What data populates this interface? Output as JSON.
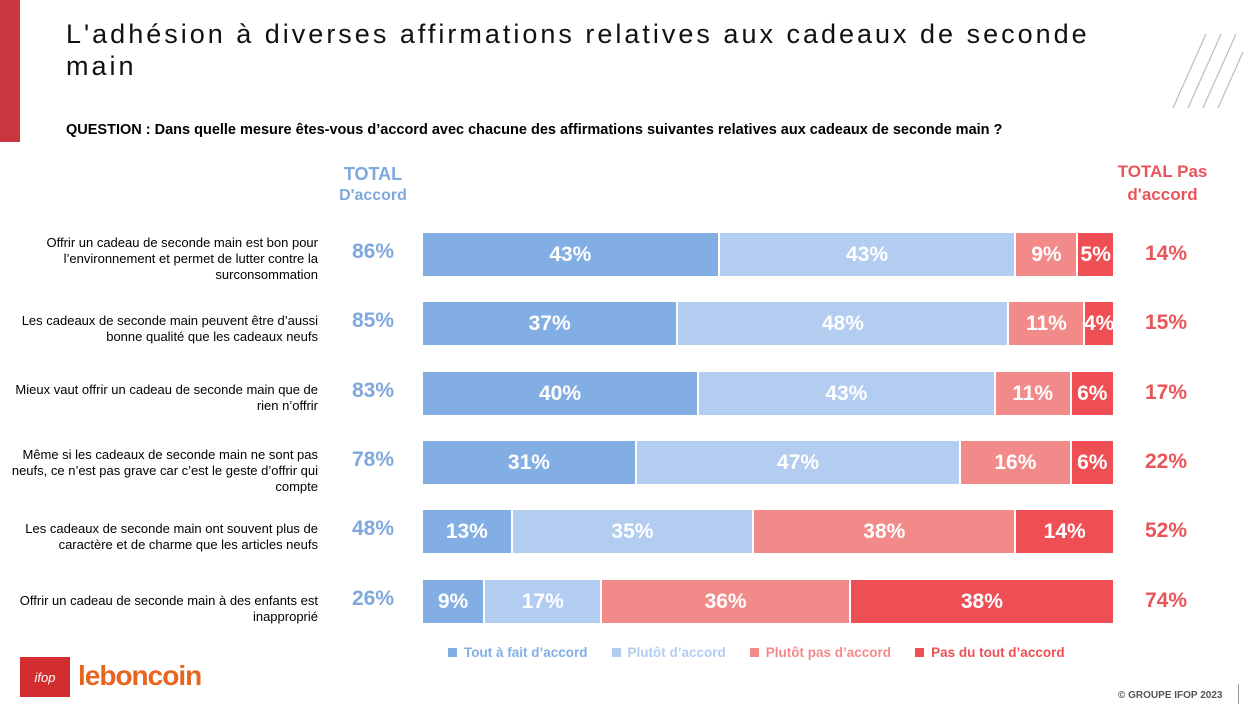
{
  "title": "L'adhésion à diverses affirmations relatives aux cadeaux de seconde main",
  "question": "QUESTION : Dans quelle mesure êtes-vous d’accord avec chacune des affirmations suivantes relatives aux cadeaux de seconde main ?",
  "header_left": {
    "line1": "TOTAL",
    "line2": "D'accord"
  },
  "header_right": {
    "line1": "TOTAL Pas",
    "line2": "d'accord"
  },
  "colors": {
    "tout_a_fait": "#82aee4",
    "plutot": "#b2cdf0",
    "plutot_pas": "#f28a8a",
    "pas_du_tout": "#ee4f54",
    "total_accord": "#7fa8dc",
    "total_pas": "#e8555a",
    "brand_accent": "#c8373d"
  },
  "chart_data": {
    "type": "bar",
    "orientation": "horizontal",
    "stacked": true,
    "categories": [
      "Offrir un cadeau de seconde main est bon pour l’environnement et permet de lutter contre la surconsommation",
      "Les cadeaux de seconde main peuvent être d’aussi bonne qualité que les cadeaux neufs",
      "Mieux vaut offrir un cadeau de seconde main que de rien n’offrir",
      "Même si les cadeaux de seconde main ne sont pas neufs, ce n’est pas grave car c’est le geste d’offrir qui compte",
      "Les cadeaux de seconde main ont souvent plus de caractère et de charme que les articles neufs",
      "Offrir un cadeau de seconde main à des enfants est inapproprié"
    ],
    "series": [
      {
        "name": "Tout à fait d’accord",
        "values": [
          43,
          37,
          40,
          31,
          13,
          9
        ]
      },
      {
        "name": "Plutôt d’accord",
        "values": [
          43,
          48,
          43,
          47,
          35,
          17
        ]
      },
      {
        "name": "Plutôt pas d’accord",
        "values": [
          9,
          11,
          11,
          16,
          38,
          36
        ]
      },
      {
        "name": "Pas du tout d’accord",
        "values": [
          5,
          4,
          6,
          6,
          14,
          38
        ]
      }
    ],
    "total_accord": [
      86,
      85,
      83,
      78,
      48,
      26
    ],
    "total_pas_accord": [
      14,
      15,
      17,
      22,
      52,
      74
    ],
    "unit": "%",
    "xlim": [
      0,
      100
    ],
    "legend_position": "bottom",
    "grid": false
  },
  "footer": {
    "logo_ifop": "ifop",
    "logo_brand": "leboncoin",
    "copyright": "© GROUPE IFOP 2023"
  }
}
